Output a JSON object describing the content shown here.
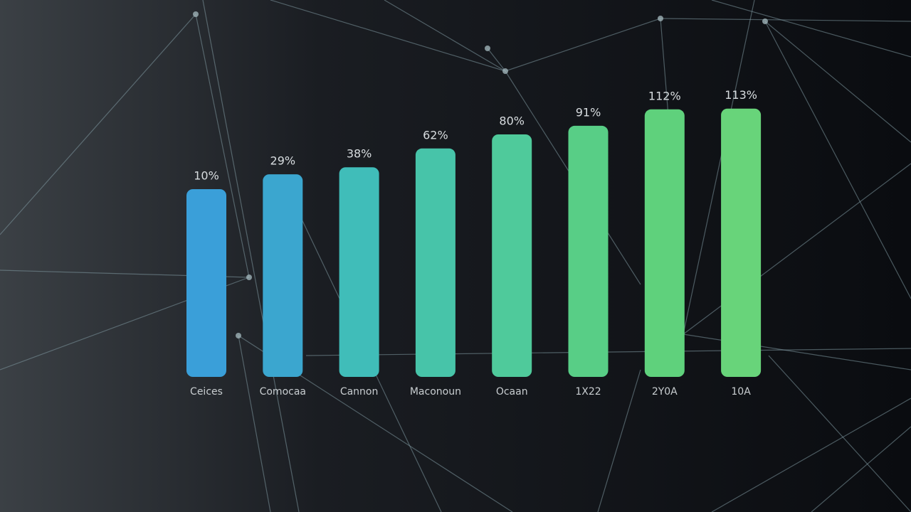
{
  "chart_data": {
    "type": "bar",
    "categories": [
      "Ceices",
      "Comocaa",
      "Cannon",
      "Maconoun",
      "Ocaan",
      "1X22",
      "2Y0A",
      "10A"
    ],
    "values": [
      10,
      29,
      38,
      62,
      80,
      91,
      112,
      113
    ],
    "value_labels": [
      "10%",
      "29%",
      "38%",
      "62%",
      "80%",
      "91%",
      "112%",
      "113%"
    ],
    "colors": [
      "#3a9fd9",
      "#3ba6cf",
      "#40bdb9",
      "#47c4a9",
      "#4fca9b",
      "#58ce86",
      "#5fd17c",
      "#68d47a"
    ],
    "ylim": [
      -230,
      130
    ]
  }
}
